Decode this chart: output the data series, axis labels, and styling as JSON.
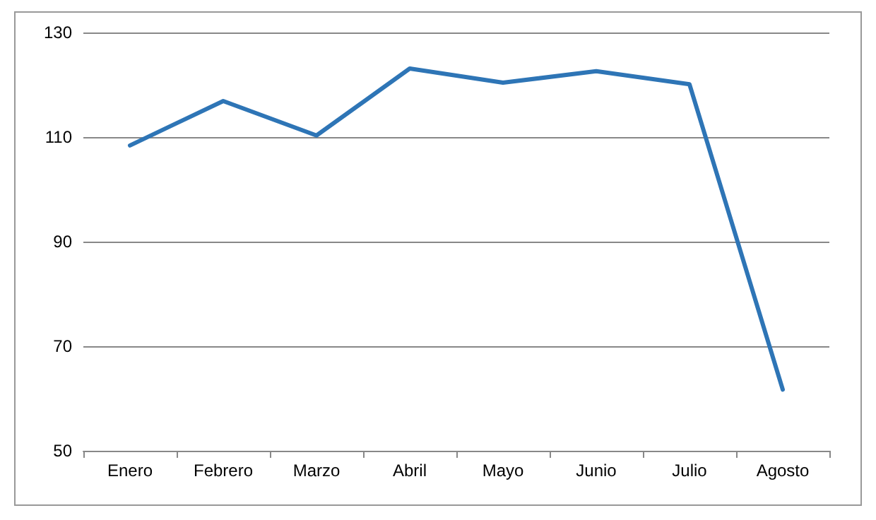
{
  "chart_data": {
    "type": "line",
    "categories": [
      "Enero",
      "Febrero",
      "Marzo",
      "Abril",
      "Mayo",
      "Junio",
      "Julio",
      "Agosto"
    ],
    "series": [
      {
        "color": "#2e75b6",
        "values": [
          108.4,
          116.9,
          110.3,
          123.1,
          120.4,
          122.6,
          120.1,
          61.7
        ]
      }
    ],
    "ylim": [
      50,
      130
    ],
    "yticks": [
      50,
      70,
      90,
      110,
      130
    ],
    "grid": "y",
    "marker": "none",
    "line_style": "solid"
  }
}
